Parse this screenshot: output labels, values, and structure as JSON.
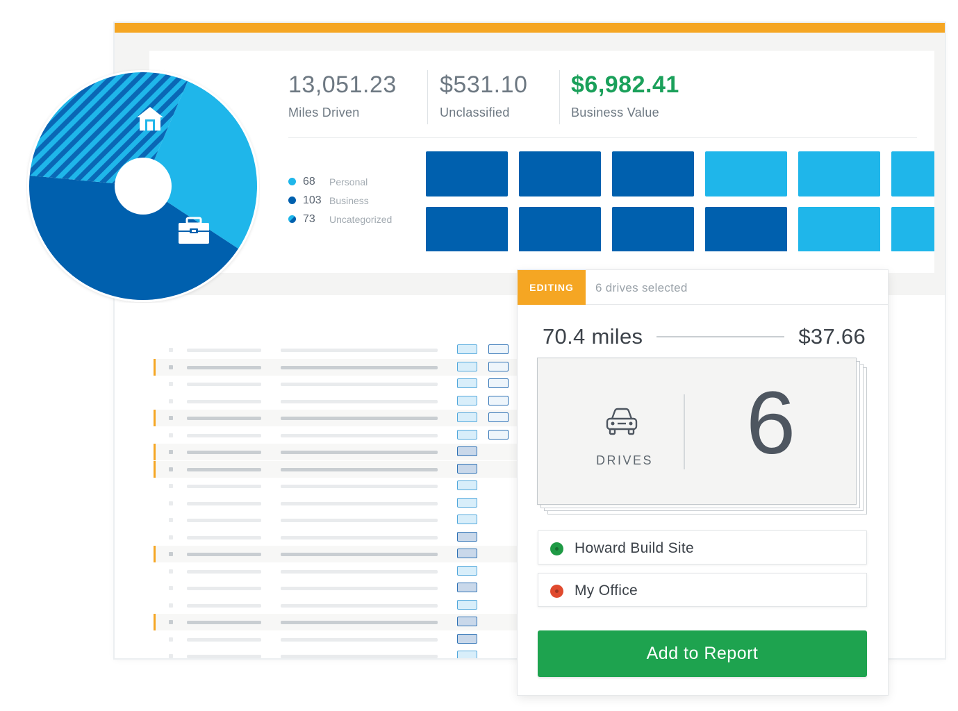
{
  "stats": [
    {
      "value": "13,051.23",
      "label": "Miles Driven"
    },
    {
      "value": "$531.10",
      "label": "Unclassified"
    },
    {
      "value": "$6,982.41",
      "label": "Business Value"
    }
  ],
  "legend": [
    {
      "count": "68",
      "label": "Personal",
      "color": "#1fb6ea"
    },
    {
      "count": "103",
      "label": "Business",
      "color": "#0060ae"
    },
    {
      "count": "73",
      "label": "Uncategorized",
      "color": "#2c8fd2"
    }
  ],
  "colors": {
    "accent": "#f5a623",
    "business": "#0060ae",
    "personal": "#1fb6ea",
    "positive": "#1aa05a",
    "button": "#1ea34f",
    "start_location": "#1f9a45",
    "end_location": "#e04a2e"
  },
  "pie": {
    "personal": 68,
    "business": 103,
    "uncategorized": 73,
    "icons": [
      "home-icon",
      "briefcase-icon"
    ]
  },
  "tiles": [
    [
      "business",
      "business",
      "business",
      "personal",
      "personal",
      "personal"
    ],
    [
      "business",
      "business",
      "business",
      "business",
      "personal",
      "personal"
    ]
  ],
  "editor": {
    "badge": "EDITING",
    "selection": "6 drives selected",
    "miles": "70.4 miles",
    "amount": "$37.66",
    "drives_label": "DRIVES",
    "drives_count": "6",
    "drives_icon": "car-icon",
    "locations": [
      {
        "name": "Howard Build Site",
        "color": "#1f9a45"
      },
      {
        "name": "My Office",
        "color": "#e04a2e"
      }
    ],
    "action_label": "Add to Report"
  }
}
